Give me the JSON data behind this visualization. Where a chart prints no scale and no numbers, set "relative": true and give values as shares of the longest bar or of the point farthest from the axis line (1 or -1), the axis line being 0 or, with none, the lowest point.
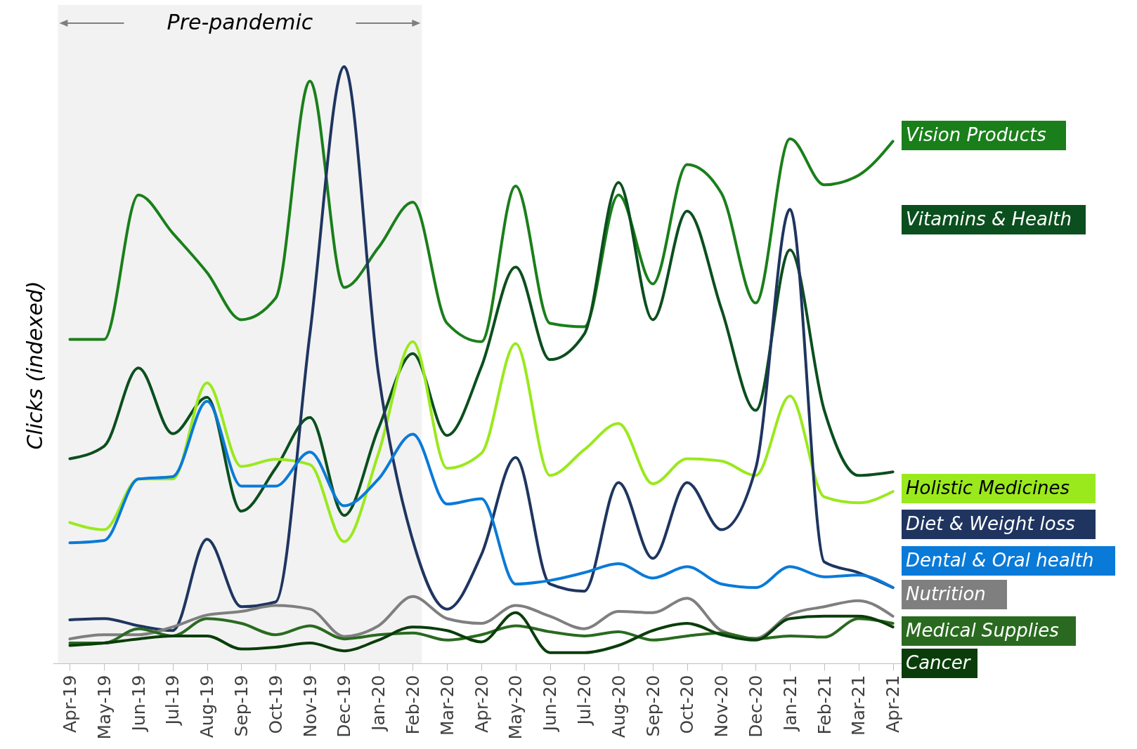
{
  "chart_data": {
    "type": "line",
    "relative": true,
    "ylabel": "Clicks (indexed)",
    "categories": [
      "Apr-19",
      "May-19",
      "Jun-19",
      "Jul-19",
      "Aug-19",
      "Sep-19",
      "Oct-19",
      "Nov-19",
      "Dec-19",
      "Jan-20",
      "Feb-20",
      "Mar-20",
      "Apr-20",
      "May-20",
      "Jun-20",
      "Jul-20",
      "Aug-20",
      "Sep-20",
      "Oct-20",
      "Nov-20",
      "Dec-20",
      "Jan-21",
      "Feb-21",
      "Mar-21",
      "Apr-21"
    ],
    "series": [
      {
        "name": "Vision Products",
        "color": "#1a7f1a",
        "values": [
          0.543,
          0.543,
          0.785,
          0.721,
          0.655,
          0.576,
          0.612,
          0.976,
          0.63,
          0.697,
          0.773,
          0.57,
          0.539,
          0.8,
          0.57,
          0.564,
          0.785,
          0.636,
          0.836,
          0.788,
          0.604,
          0.879,
          0.802,
          0.818,
          0.875
        ]
      },
      {
        "name": "Vitamins & Health",
        "color": "#0b4f1e",
        "values": [
          0.343,
          0.364,
          0.495,
          0.385,
          0.446,
          0.255,
          0.327,
          0.412,
          0.248,
          0.394,
          0.519,
          0.382,
          0.497,
          0.664,
          0.509,
          0.552,
          0.806,
          0.576,
          0.758,
          0.594,
          0.424,
          0.693,
          0.424,
          0.315,
          0.321
        ]
      },
      {
        "name": "Holistic Medicines",
        "color": "#9ae91c",
        "values": [
          0.236,
          0.224,
          0.309,
          0.309,
          0.47,
          0.33,
          0.342,
          0.333,
          0.204,
          0.352,
          0.539,
          0.327,
          0.352,
          0.536,
          0.315,
          0.358,
          0.402,
          0.301,
          0.343,
          0.339,
          0.315,
          0.448,
          0.279,
          0.269,
          0.288
        ]
      },
      {
        "name": "Diet & Weight loss",
        "color": "#1f3560",
        "values": [
          0.073,
          0.075,
          0.063,
          0.055,
          0.208,
          0.095,
          0.103,
          0.552,
          1,
          0.485,
          0.206,
          0.091,
          0.182,
          0.345,
          0.133,
          0.121,
          0.303,
          0.176,
          0.303,
          0.224,
          0.327,
          0.761,
          0.17,
          0.152,
          0.127
        ]
      },
      {
        "name": "Dental & Oral health",
        "color": "#0a7ad8",
        "values": [
          0.202,
          0.206,
          0.309,
          0.313,
          0.439,
          0.297,
          0.297,
          0.354,
          0.264,
          0.309,
          0.384,
          0.267,
          0.276,
          0.133,
          0.139,
          0.152,
          0.167,
          0.143,
          0.162,
          0.133,
          0.127,
          0.162,
          0.145,
          0.148,
          0.127
        ]
      },
      {
        "name": "Nutrition",
        "color": "#7f7f7f",
        "values": [
          0.041,
          0.048,
          0.048,
          0.061,
          0.081,
          0.087,
          0.097,
          0.091,
          0.045,
          0.063,
          0.112,
          0.075,
          0.067,
          0.097,
          0.079,
          0.058,
          0.087,
          0.085,
          0.109,
          0.055,
          0.042,
          0.082,
          0.095,
          0.105,
          0.079
        ]
      },
      {
        "name": "Medical Supplies",
        "color": "#2a6a20",
        "values": [
          0.034,
          0.034,
          0.058,
          0.046,
          0.075,
          0.067,
          0.048,
          0.063,
          0.041,
          0.048,
          0.051,
          0.039,
          0.048,
          0.063,
          0.053,
          0.046,
          0.053,
          0.039,
          0.046,
          0.051,
          0.041,
          0.046,
          0.044,
          0.075,
          0.067
        ]
      },
      {
        "name": "Cancer",
        "color": "#0a3d0a",
        "values": [
          0.03,
          0.034,
          0.041,
          0.046,
          0.046,
          0.024,
          0.027,
          0.034,
          0.021,
          0.039,
          0.061,
          0.055,
          0.036,
          0.085,
          0.018,
          0.018,
          0.03,
          0.055,
          0.067,
          0.048,
          0.039,
          0.075,
          0.079,
          0.079,
          0.061
        ]
      }
    ],
    "bands": [
      {
        "axis": "x",
        "from": "Apr-19",
        "to": "Feb-20",
        "label": "Pre-pandemic",
        "color": "#f2f2f2"
      }
    ]
  }
}
